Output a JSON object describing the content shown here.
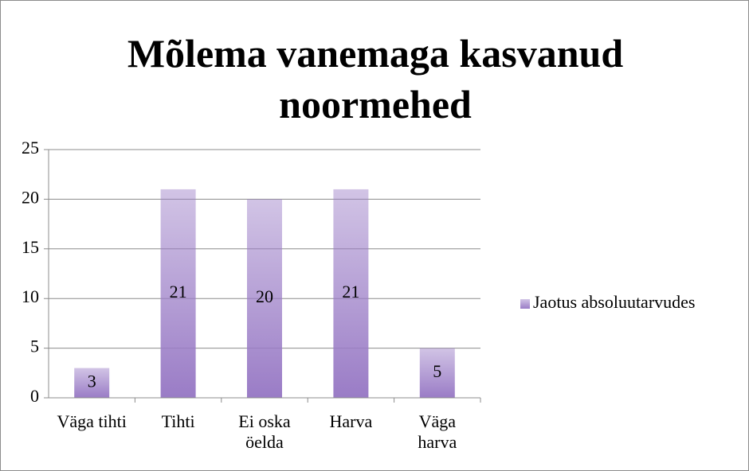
{
  "chart_data": {
    "type": "bar",
    "title": "Mõlema vanemaga kasvanud noormehed",
    "categories": [
      "Väga tihti",
      "Tihti",
      "Ei oska öelda",
      "Harva",
      "Väga harva"
    ],
    "series": [
      {
        "name": "Jaotus absoluutarvudes",
        "color": "#9a7cc6",
        "values": [
          3,
          21,
          20,
          21,
          5
        ]
      }
    ],
    "ylim": [
      0,
      25
    ],
    "yticks": [
      0,
      5,
      10,
      15,
      20,
      25
    ],
    "grid": true,
    "legend": "right"
  }
}
